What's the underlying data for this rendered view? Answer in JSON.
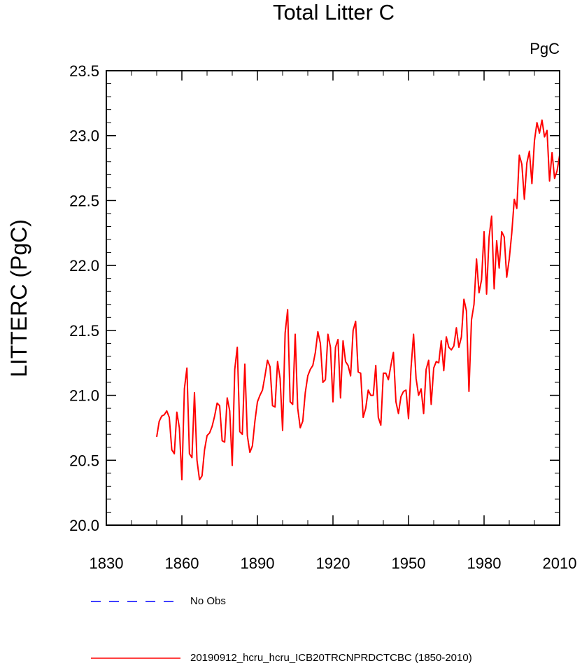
{
  "chart_data": {
    "type": "line",
    "title": "Total Litter C",
    "units": "PgC",
    "ylabel": "LITTERC  (PgC)",
    "xlabel": "",
    "xlim": [
      1830,
      2010
    ],
    "ylim": [
      20.0,
      23.5
    ],
    "x_ticks": [
      1830,
      1860,
      1890,
      1920,
      1950,
      1980,
      2010
    ],
    "y_ticks": [
      "20.0",
      "20.5",
      "21.0",
      "21.5",
      "22.0",
      "22.5",
      "23.0",
      "23.5"
    ],
    "grid": false,
    "legend_position": "bottom",
    "series": [
      {
        "name": "No Obs",
        "color": "#0000ff",
        "dash": "dashed",
        "x": [],
        "values": []
      },
      {
        "name": "20190912_hcru_hcru_ICB20TRCNPRDCTCBC (1850-2010)",
        "color": "#ff0000",
        "dash": "solid",
        "x": [
          1850,
          1851,
          1852,
          1853,
          1854,
          1855,
          1856,
          1857,
          1858,
          1859,
          1860,
          1861,
          1862,
          1863,
          1864,
          1865,
          1866,
          1867,
          1868,
          1869,
          1870,
          1871,
          1872,
          1873,
          1874,
          1875,
          1876,
          1877,
          1878,
          1879,
          1880,
          1881,
          1882,
          1883,
          1884,
          1885,
          1886,
          1887,
          1888,
          1889,
          1890,
          1891,
          1892,
          1893,
          1894,
          1895,
          1896,
          1897,
          1898,
          1899,
          1900,
          1901,
          1902,
          1903,
          1904,
          1905,
          1906,
          1907,
          1908,
          1909,
          1910,
          1911,
          1912,
          1913,
          1914,
          1915,
          1916,
          1917,
          1918,
          1919,
          1920,
          1921,
          1922,
          1923,
          1924,
          1925,
          1926,
          1927,
          1928,
          1929,
          1930,
          1931,
          1932,
          1933,
          1934,
          1935,
          1936,
          1937,
          1938,
          1939,
          1940,
          1941,
          1942,
          1943,
          1944,
          1945,
          1946,
          1947,
          1948,
          1949,
          1950,
          1951,
          1952,
          1953,
          1954,
          1955,
          1956,
          1957,
          1958,
          1959,
          1960,
          1961,
          1962,
          1963,
          1964,
          1965,
          1966,
          1967,
          1968,
          1969,
          1970,
          1971,
          1972,
          1973,
          1974,
          1975,
          1976,
          1977,
          1978,
          1979,
          1980,
          1981,
          1982,
          1983,
          1984,
          1985,
          1986,
          1987,
          1988,
          1989,
          1990,
          1991,
          1992,
          1993,
          1994,
          1995,
          1996,
          1997,
          1998,
          1999,
          2000,
          2001,
          2002,
          2003,
          2004,
          2005,
          2006,
          2007,
          2008,
          2009,
          2010
        ],
        "values": [
          20.68,
          20.8,
          20.84,
          20.85,
          20.88,
          20.83,
          20.58,
          20.55,
          20.87,
          20.75,
          20.35,
          21.05,
          21.21,
          20.55,
          20.52,
          21.02,
          20.5,
          20.35,
          20.38,
          20.58,
          20.69,
          20.71,
          20.76,
          20.84,
          20.94,
          20.92,
          20.65,
          20.64,
          20.98,
          20.88,
          20.46,
          21.2,
          21.37,
          20.72,
          20.7,
          21.24,
          20.69,
          20.56,
          20.61,
          20.8,
          20.95,
          21.0,
          21.04,
          21.15,
          21.27,
          21.22,
          20.92,
          20.91,
          21.26,
          21.13,
          20.73,
          21.48,
          21.66,
          20.95,
          20.93,
          21.47,
          20.9,
          20.75,
          20.8,
          21.02,
          21.15,
          21.2,
          21.23,
          21.33,
          21.49,
          21.4,
          21.1,
          21.12,
          21.47,
          21.37,
          20.95,
          21.37,
          21.43,
          20.98,
          21.42,
          21.26,
          21.23,
          21.15,
          21.5,
          21.57,
          21.18,
          21.17,
          20.83,
          20.9,
          21.04,
          21.0,
          21.0,
          21.23,
          20.83,
          20.77,
          21.17,
          21.17,
          21.12,
          21.23,
          21.33,
          20.95,
          20.86,
          20.99,
          21.03,
          21.04,
          20.82,
          21.21,
          21.47,
          21.13,
          21.0,
          21.05,
          20.86,
          21.2,
          21.27,
          20.93,
          21.21,
          21.26,
          21.25,
          21.42,
          21.19,
          21.45,
          21.37,
          21.35,
          21.38,
          21.52,
          21.37,
          21.45,
          21.74,
          21.65,
          21.03,
          21.58,
          21.7,
          22.05,
          21.79,
          21.89,
          22.26,
          21.78,
          22.22,
          22.38,
          21.82,
          22.19,
          21.98,
          22.26,
          22.22,
          21.91,
          22.05,
          22.25,
          22.51,
          22.44,
          22.85,
          22.78,
          22.51,
          22.79,
          22.88,
          22.63,
          22.96,
          23.1,
          23.02,
          23.12,
          22.99,
          23.04,
          22.65,
          22.87,
          22.67,
          22.73,
          22.85
        ]
      }
    ]
  }
}
